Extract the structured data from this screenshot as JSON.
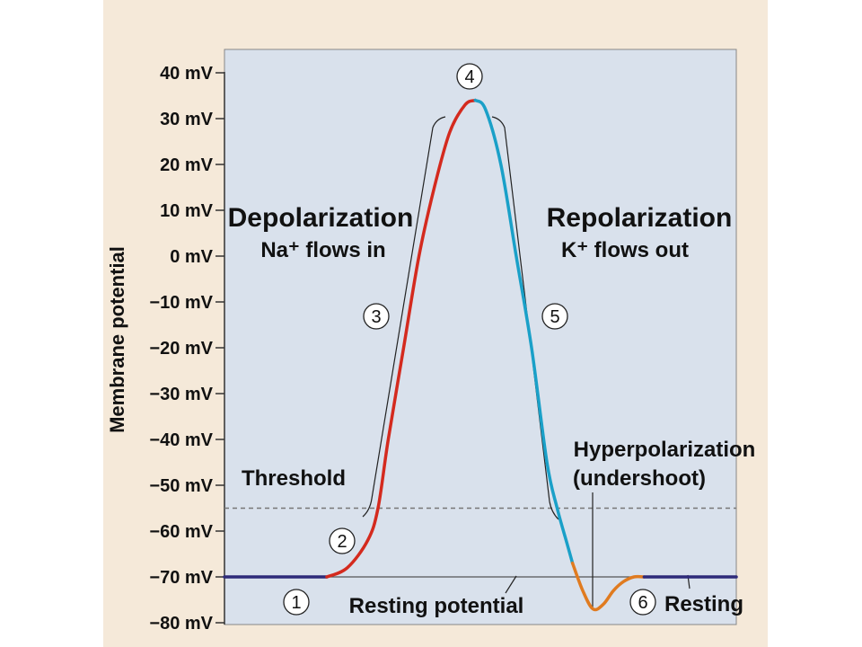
{
  "chart_data": {
    "type": "line",
    "title": "",
    "xlabel": "",
    "ylabel": "Membrane potential",
    "ylim": [
      -80,
      40
    ],
    "y_ticks": [
      "40 mV",
      "30 mV",
      "20 mV",
      "10 mV",
      "0 mV",
      "−10 mV",
      "−20 mV",
      "−30 mV",
      "−40 mV",
      "−50 mV",
      "−60 mV",
      "−70 mV",
      "−80 mV"
    ],
    "y_tick_values": [
      40,
      30,
      20,
      10,
      0,
      -10,
      -20,
      -30,
      -40,
      -50,
      -60,
      -70,
      -80
    ],
    "grid": false,
    "threshold": {
      "value": -55,
      "label": "Threshold"
    },
    "resting_line": {
      "value": -70
    },
    "series": [
      {
        "phase": "resting",
        "color": "#2e2a7a",
        "x": [
          0,
          20
        ],
        "y": [
          -70,
          -70
        ]
      },
      {
        "phase": "depolarization",
        "color": "#d42a1e",
        "x": [
          20,
          24,
          28,
          30,
          32,
          35,
          38,
          41,
          44,
          47,
          49
        ],
        "y": [
          -70,
          -68,
          -62,
          -55,
          -40,
          -20,
          0,
          15,
          27,
          33,
          34
        ]
      },
      {
        "phase": "repolarization",
        "color": "#1aa0c8",
        "x": [
          49,
          51,
          54,
          57,
          60,
          63,
          65,
          67,
          68
        ],
        "y": [
          34,
          32,
          20,
          0,
          -20,
          -45,
          -55,
          -63,
          -67
        ]
      },
      {
        "phase": "hyperpolarization",
        "color": "#e07b20",
        "x": [
          68,
          70,
          72,
          74,
          76,
          78,
          80,
          82
        ],
        "y": [
          -67,
          -73,
          -77,
          -76,
          -73,
          -71,
          -70,
          -70
        ]
      },
      {
        "phase": "resting",
        "color": "#2e2a7a",
        "x": [
          82,
          100
        ],
        "y": [
          -70,
          -70
        ]
      }
    ],
    "annotations": {
      "depolarization_title": "Depolarization",
      "depolarization_sub": "Na⁺ flows in",
      "repolarization_title": "Repolarization",
      "repolarization_sub": "K⁺ flows out",
      "hyperpolarization_title": "Hyperpolarization",
      "hyperpolarization_sub": "(undershoot)",
      "resting_potential": "Resting potential",
      "resting": "Resting"
    },
    "steps": [
      "1",
      "2",
      "3",
      "4",
      "5",
      "6"
    ]
  }
}
